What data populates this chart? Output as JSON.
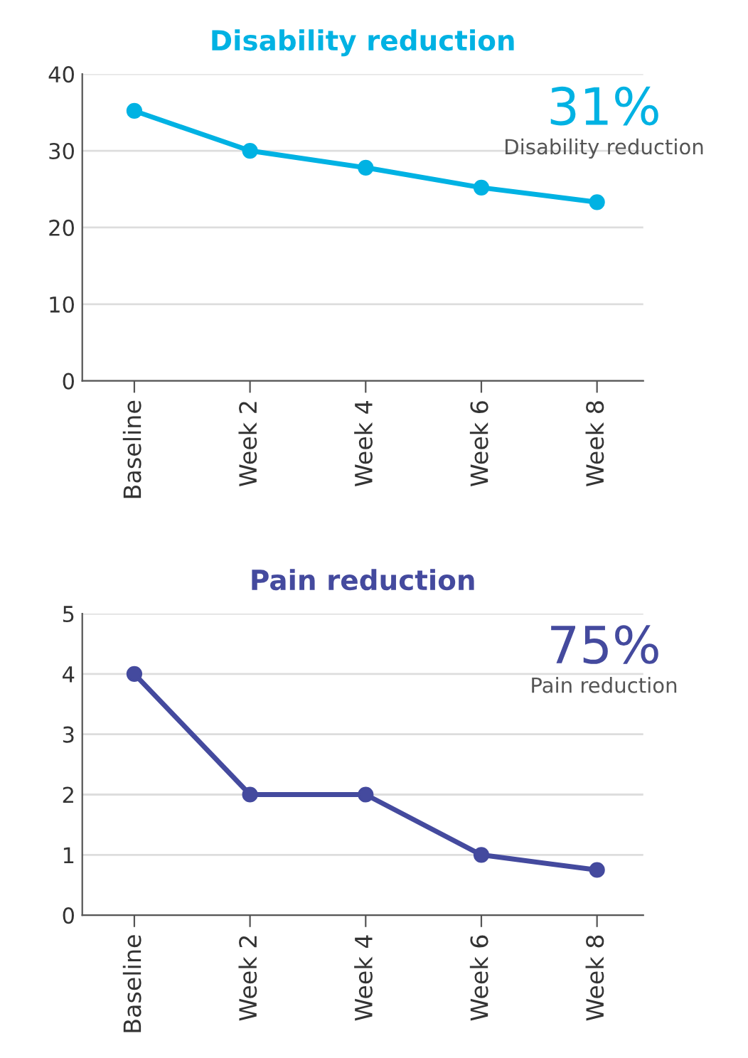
{
  "chart_data": [
    {
      "type": "line",
      "title": "Disability reduction",
      "categories": [
        "Baseline",
        "Week 2",
        "Week 4",
        "Week 6",
        "Week 8"
      ],
      "series": [
        {
          "color": "#00b2e3",
          "values": [
            35.2,
            30,
            27.8,
            25.2,
            23.3
          ]
        }
      ],
      "ylim": [
        0,
        40
      ],
      "yticks": [
        0,
        10,
        20,
        30,
        40
      ],
      "grid": "y",
      "marker": "circle",
      "line_style": "solid",
      "annotations": [
        "31%",
        "Disability reduction"
      ]
    },
    {
      "type": "line",
      "title": "Pain reduction",
      "categories": [
        "Baseline",
        "Week 2",
        "Week 4",
        "Week 6",
        "Week 8"
      ],
      "series": [
        {
          "color": "#444a9e",
          "values": [
            4,
            2,
            2,
            1,
            0.75
          ]
        }
      ],
      "ylim": [
        0,
        5
      ],
      "yticks": [
        0,
        1,
        2,
        3,
        4,
        5
      ],
      "grid": "y",
      "marker": "circle",
      "line_style": "solid",
      "annotations": [
        "75%",
        "Pain reduction"
      ]
    }
  ]
}
